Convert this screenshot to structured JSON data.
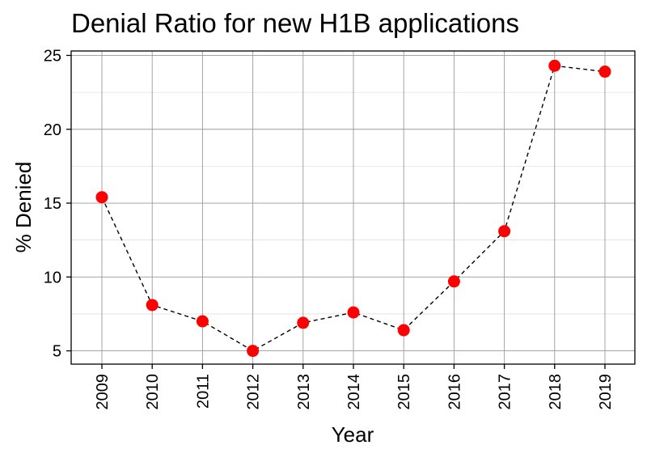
{
  "chart_data": {
    "type": "line",
    "title": "Denial Ratio for new H1B applications",
    "xlabel": "Year",
    "ylabel": "% Denied",
    "x": [
      "2009",
      "2010",
      "2011",
      "2012",
      "2013",
      "2014",
      "2015",
      "2016",
      "2017",
      "2018",
      "2019"
    ],
    "series": [
      {
        "values": [
          15.4,
          8.1,
          7.0,
          5.0,
          6.9,
          7.6,
          6.4,
          9.7,
          13.1,
          24.3,
          23.9
        ],
        "marker_color": "#ff0000",
        "line_color": "#000000",
        "line_style": "dashed"
      }
    ],
    "ylim": [
      4.1,
      25.3
    ],
    "yticks": [
      "5",
      "10",
      "15",
      "20",
      "25"
    ],
    "ytick_values": [
      5,
      10,
      15,
      20,
      25
    ],
    "grid": true,
    "legend": "none"
  }
}
